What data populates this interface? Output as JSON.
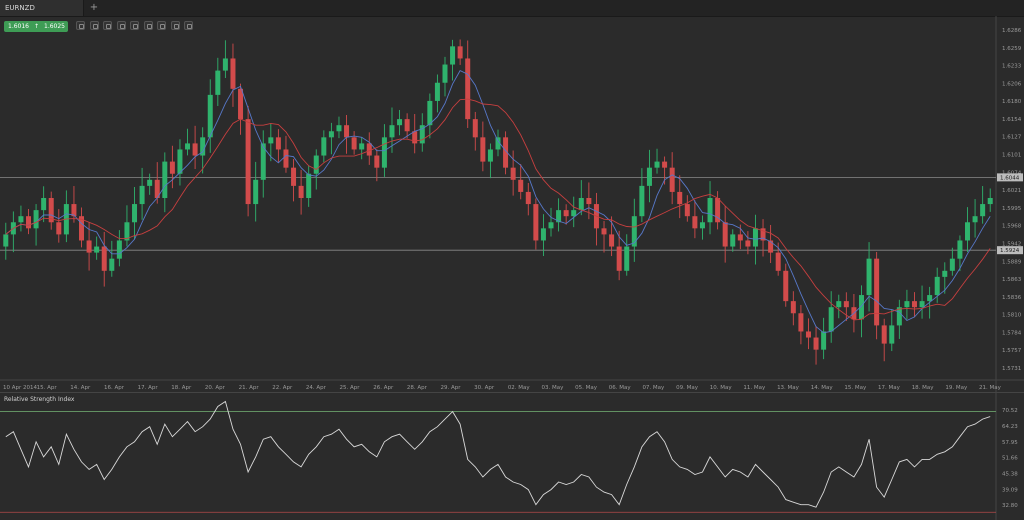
{
  "tab": {
    "symbol": "EURNZD",
    "add_label": "+"
  },
  "ticker": {
    "bid": "1.6016",
    "ask": "1.6025"
  },
  "toolbar_icons": [
    "zoom-in-icon",
    "zoom-out-icon",
    "crosshair-icon",
    "candle-type-icon",
    "list-icon",
    "copy-icon",
    "draw-icon",
    "indicator-icon",
    "pencil-icon"
  ],
  "rsi_title": "Relative Strength Index",
  "colors": {
    "up": "#2fb36d",
    "down": "#d24b4b",
    "ma_fast": "#5778c9",
    "ma_slow": "#c63f3f",
    "rsi": "#d9d9d9",
    "level_line": "#8a8a8a",
    "label_bg": "#bdbdbd"
  },
  "chart_data": [
    {
      "type": "candlestick",
      "title": "EURNZD",
      "ylim": [
        1.571,
        1.631
      ],
      "y_ticks": [
        "1.6286",
        "1.6259",
        "1.6233",
        "1.6206",
        "1.6180",
        "1.6154",
        "1.6127",
        "1.6101",
        "1.6074",
        "1.6021",
        "1.5995",
        "1.5968",
        "1.5942",
        "1.5889",
        "1.5863",
        "1.5836",
        "1.5810",
        "1.5784",
        "1.5757",
        "1.5731"
      ],
      "x_ticks": [
        "10 Apr 2014",
        "15. Apr",
        "14. Apr",
        "16. Apr",
        "17. Apr",
        "18. Apr",
        "20. Apr",
        "21. Apr",
        "22. Apr",
        "24. Apr",
        "25. Apr",
        "26. Apr",
        "28. Apr",
        "29. Apr",
        "30. Apr",
        "02. May",
        "03. May",
        "05. May",
        "06. May",
        "07. May",
        "09. May",
        "10. May",
        "11. May",
        "13. May",
        "14. May",
        "15. May",
        "17. May",
        "18. May",
        "19. May",
        "21. May"
      ],
      "horizontal_levels": [
        {
          "value": "1.6044",
          "price": 1.6044
        },
        {
          "value": "1.5924",
          "price": 1.5924
        }
      ],
      "close": [
        1.595,
        1.597,
        1.598,
        1.596,
        1.599,
        1.601,
        1.597,
        1.595,
        1.6,
        1.598,
        1.594,
        1.592,
        1.593,
        1.589,
        1.591,
        1.594,
        1.597,
        1.6,
        1.603,
        1.604,
        1.601,
        1.607,
        1.605,
        1.609,
        1.61,
        1.608,
        1.611,
        1.618,
        1.622,
        1.624,
        1.619,
        1.614,
        1.6,
        1.604,
        1.61,
        1.611,
        1.609,
        1.606,
        1.603,
        1.601,
        1.605,
        1.608,
        1.611,
        1.612,
        1.613,
        1.611,
        1.609,
        1.61,
        1.608,
        1.606,
        1.611,
        1.613,
        1.614,
        1.612,
        1.61,
        1.613,
        1.617,
        1.62,
        1.623,
        1.626,
        1.624,
        1.614,
        1.611,
        1.607,
        1.609,
        1.611,
        1.606,
        1.604,
        1.602,
        1.6,
        1.594,
        1.596,
        1.597,
        1.599,
        1.598,
        1.599,
        1.601,
        1.6,
        1.596,
        1.595,
        1.593,
        1.589,
        1.593,
        1.598,
        1.603,
        1.606,
        1.607,
        1.606,
        1.602,
        1.6,
        1.598,
        1.596,
        1.597,
        1.601,
        1.597,
        1.593,
        1.595,
        1.594,
        1.593,
        1.596,
        1.594,
        1.592,
        1.589,
        1.584,
        1.582,
        1.579,
        1.578,
        1.576,
        1.579,
        1.583,
        1.584,
        1.583,
        1.581,
        1.585,
        1.591,
        1.58,
        1.577,
        1.58,
        1.583,
        1.584,
        1.583,
        1.584,
        1.585,
        1.588,
        1.589,
        1.591,
        1.594,
        1.597,
        1.598,
        1.6,
        1.601
      ]
    },
    {
      "type": "line",
      "title": "Relative Strength Index",
      "ylim": [
        28.5,
        73
      ],
      "y_ticks": [
        "70.52",
        "64.23",
        "57.95",
        "51.66",
        "45.38",
        "39.09",
        "32.80"
      ],
      "levels": [
        70,
        30
      ],
      "values": [
        60,
        62,
        55,
        48,
        58,
        52,
        56,
        49,
        61,
        55,
        50,
        47,
        49,
        43,
        47,
        52,
        56,
        58,
        62,
        64,
        57,
        65,
        60,
        63,
        66,
        62,
        64,
        67,
        72,
        74,
        63,
        57,
        46,
        52,
        59,
        60,
        56,
        53,
        50,
        48,
        53,
        56,
        60,
        61,
        63,
        59,
        56,
        57,
        54,
        52,
        58,
        60,
        61,
        58,
        55,
        58,
        62,
        64,
        67,
        70,
        65,
        51,
        48,
        44,
        47,
        49,
        44,
        42,
        41,
        39,
        33,
        37,
        39,
        42,
        41,
        42,
        45,
        44,
        40,
        38,
        37,
        33,
        41,
        48,
        56,
        60,
        62,
        58,
        51,
        48,
        47,
        45,
        46,
        52,
        48,
        44,
        47,
        46,
        44,
        49,
        46,
        43,
        40,
        35,
        34,
        33,
        33,
        32,
        38,
        46,
        48,
        46,
        44,
        49,
        59,
        40,
        36,
        43,
        50,
        51,
        48,
        51,
        51,
        53,
        54,
        56,
        60,
        64,
        65,
        67,
        68
      ]
    }
  ]
}
